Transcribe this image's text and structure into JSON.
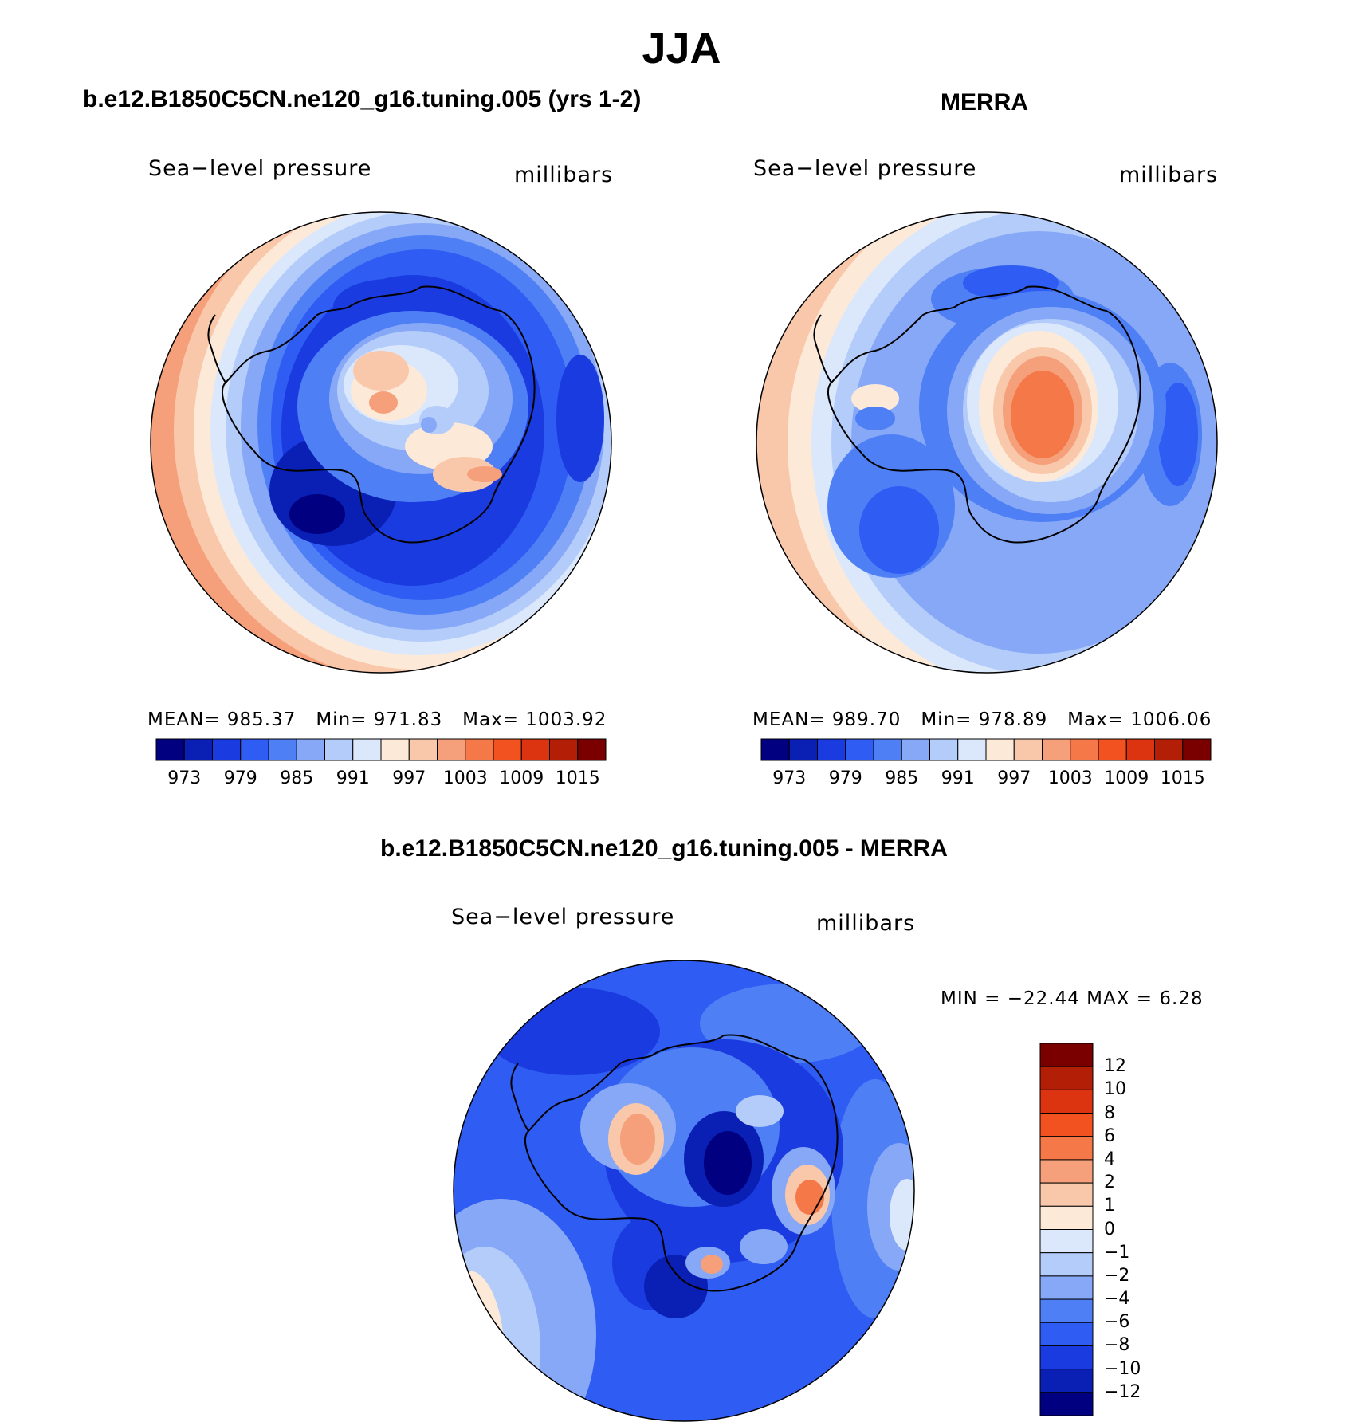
{
  "figure": {
    "title": "JJA"
  },
  "panels": {
    "model": {
      "title": "b.e12.B1850C5CN.ne120_g16.tuning.005 (yrs 1-2)",
      "variable": "Sea−level pressure",
      "units": "millibars",
      "stats": {
        "mean_label": "MEAN=",
        "mean": "985.37",
        "min_label": "Min=",
        "min": "971.83",
        "max_label": "Max=",
        "max": "1003.92"
      }
    },
    "obs": {
      "title": "MERRA",
      "variable": "Sea−level pressure",
      "units": "millibars",
      "stats": {
        "mean_label": "MEAN=",
        "mean": "989.70",
        "min_label": "Min=",
        "min": "978.89",
        "max_label": "Max=",
        "max": "1006.06"
      }
    },
    "diff": {
      "title": "b.e12.B1850C5CN.ne120_g16.tuning.005 - MERRA",
      "variable": "Sea−level pressure",
      "units": "millibars",
      "minmax": "MIN = −22.44 MAX =    6.28"
    }
  },
  "colorbars": {
    "abs_colors": [
      "#000080",
      "#0a1fb4",
      "#1a3be0",
      "#2f5cf2",
      "#4e7ff5",
      "#86a8f7",
      "#b4ccfa",
      "#dbe8fc",
      "#fde9d8",
      "#f9c8ab",
      "#f5a07a",
      "#f47848",
      "#f2521f",
      "#dc3410",
      "#b31f06",
      "#7a0000"
    ],
    "abs_ticks": [
      "973",
      "979",
      "985",
      "991",
      "997",
      "1003",
      "1009",
      "1015"
    ],
    "abs_tick_boundaries": [
      1,
      3,
      5,
      7,
      9,
      11,
      13,
      15
    ],
    "diff_colors": [
      "#7a0000",
      "#b31f06",
      "#dc3410",
      "#f2521f",
      "#f47848",
      "#f5a07a",
      "#f9c8ab",
      "#fde9d8",
      "#dbe8fc",
      "#b4ccfa",
      "#86a8f7",
      "#4e7ff5",
      "#2f5cf2",
      "#1a3be0",
      "#0a1fb4",
      "#000080"
    ],
    "diff_ticks": [
      "12",
      "10",
      "8",
      "6",
      "4",
      "2",
      "1",
      "0",
      "−1",
      "−2",
      "−4",
      "−6",
      "−8",
      "−10",
      "−12"
    ]
  },
  "map_colors": {
    "deep_blue": "#0a1fb4",
    "blue": "#1a3be0",
    "mid_blue": "#2f5cf2",
    "light_blue": "#4e7ff5",
    "pale_blue": "#86a8f7",
    "very_pale_blue": "#b4ccfa",
    "ice_blue": "#dbe8fc",
    "cream": "#fde9d8",
    "peach": "#f9c8ab",
    "salmon": "#f5a07a",
    "orange": "#f47848",
    "coastline": "#000000"
  }
}
